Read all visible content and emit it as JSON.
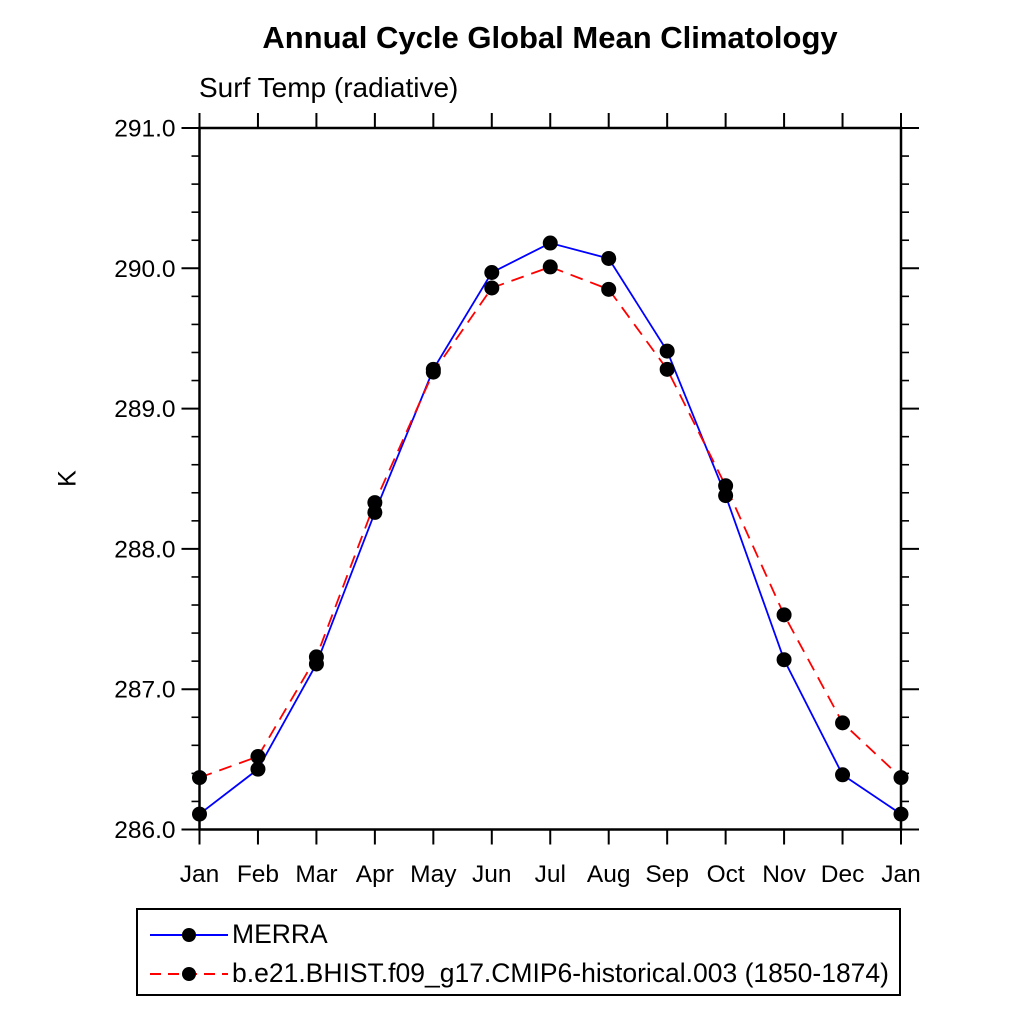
{
  "page": {
    "background_color": "#ffffff",
    "text_color": "#000000"
  },
  "chart_data": {
    "type": "line",
    "title": "Annual Cycle Global Mean Climatology",
    "subtitle": "Surf Temp (radiative)",
    "ylabel": "K",
    "x_categories": [
      "Jan",
      "Feb",
      "Mar",
      "Apr",
      "May",
      "Jun",
      "Jul",
      "Aug",
      "Sep",
      "Oct",
      "Nov",
      "Dec",
      "Jan"
    ],
    "ylim": [
      286.0,
      291.0
    ],
    "y_major_ticks": [
      286.0,
      287.0,
      288.0,
      289.0,
      290.0,
      291.0
    ],
    "y_tick_labels": [
      "286.0",
      "287.0",
      "288.0",
      "289.0",
      "290.0",
      "291.0"
    ],
    "y_minor_step": 0.2,
    "grid": false,
    "marker": "filled-circle",
    "marker_color": "#000000",
    "axis_color": "#000000",
    "legend_position": "bottom-left",
    "series": [
      {
        "name": "MERRA",
        "color": "#0000ff",
        "style": "solid",
        "values": [
          286.11,
          286.43,
          287.18,
          288.26,
          289.28,
          289.97,
          290.18,
          290.07,
          289.41,
          288.38,
          287.21,
          286.39,
          286.11
        ]
      },
      {
        "name": "b.e21.BHIST.f09_g17.CMIP6-historical.003 (1850-1874)",
        "color": "#ff0000",
        "style": "dashed",
        "values": [
          286.37,
          286.52,
          287.23,
          288.33,
          289.26,
          289.86,
          290.01,
          289.85,
          289.28,
          288.45,
          287.53,
          286.76,
          286.37
        ]
      }
    ]
  }
}
